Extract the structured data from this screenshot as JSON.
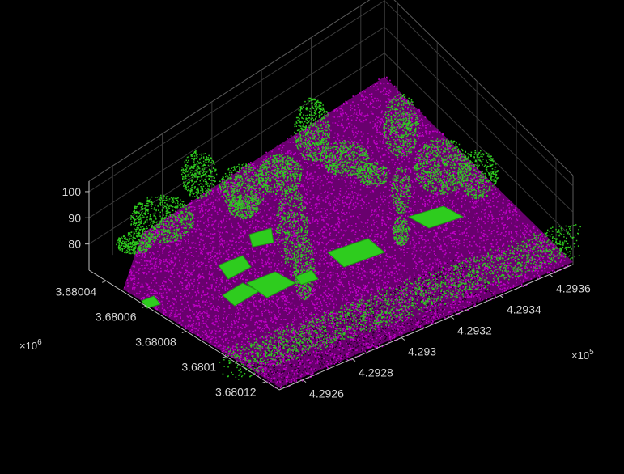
{
  "chart_data": {
    "type": "scatter",
    "subtype": "3d-point-cloud",
    "title": "",
    "xlabel": "",
    "ylabel": "",
    "zlabel": "",
    "background": "#000000",
    "axes_color": "#d6d6d6",
    "grid": true,
    "legend": "none",
    "x_ticks": [
      "4.2926",
      "4.2928",
      "4.293",
      "4.2932",
      "4.2934",
      "4.2936"
    ],
    "x_exponent": {
      "base": "×10",
      "power": "5"
    },
    "y_ticks": [
      "3.68004",
      "3.68006",
      "3.68008",
      "3.6801",
      "3.68012"
    ],
    "y_exponent": {
      "base": "×10",
      "power": "6"
    },
    "z_ticks": [
      "80",
      "90",
      "100"
    ],
    "xlim": [
      4.29255,
      4.29372
    ],
    "ylim": [
      3.680025,
      3.680135
    ],
    "zlim": [
      70,
      104
    ],
    "series": [
      {
        "name": "",
        "color": "#c000c8",
        "class": "ground"
      },
      {
        "name": "",
        "color": "#2ecc1e",
        "class": "vegetation-and-buildings"
      }
    ]
  }
}
